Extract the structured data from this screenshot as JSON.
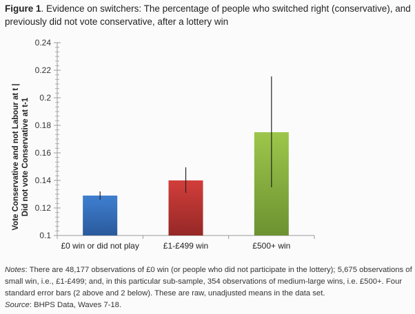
{
  "caption": {
    "label": "Figure 1",
    "text": ". Evidence on switchers: The percentage of people who switched right (conservative), and previously did not vote conservative, after a lottery win"
  },
  "chart_data": {
    "type": "bar",
    "title": "",
    "categories": [
      "£0 win or did not play",
      "£1-£499 win",
      "£500+ win"
    ],
    "values": [
      0.129,
      0.14,
      0.175
    ],
    "error_bars": [
      [
        0.126,
        0.132
      ],
      [
        0.131,
        0.1495
      ],
      [
        0.135,
        0.2155
      ]
    ],
    "colors": [
      "#3a74c0",
      "#c23a37",
      "#8fb843"
    ],
    "ylabel_line1": "Vote Conservative and not Labour at t |",
    "ylabel_line2": "Did not vote Conservative at t-1",
    "xlabel": "",
    "ylim": [
      0.1,
      0.24
    ],
    "yticks": [
      "0.1",
      "0.12",
      "0.14",
      "0.16",
      "0.18",
      "0.2",
      "0.22",
      "0.24"
    ],
    "grid": false,
    "legend": "none"
  },
  "notes": {
    "notes_label": "Notes",
    "notes_text": ": There are 48,177 observations of £0 win (or people who did not participate in the lottery); 5,675 observations of small win, i.e., £1-£499; and, in this particular sub-sample, 354 observations of medium-large wins, i.e. £500+. Four standard error bars (2 above and 2 below). These are raw, unadjusted means in the data set.",
    "source_label": "Source",
    "source_text": ": BHPS Data, Waves 7-18."
  }
}
